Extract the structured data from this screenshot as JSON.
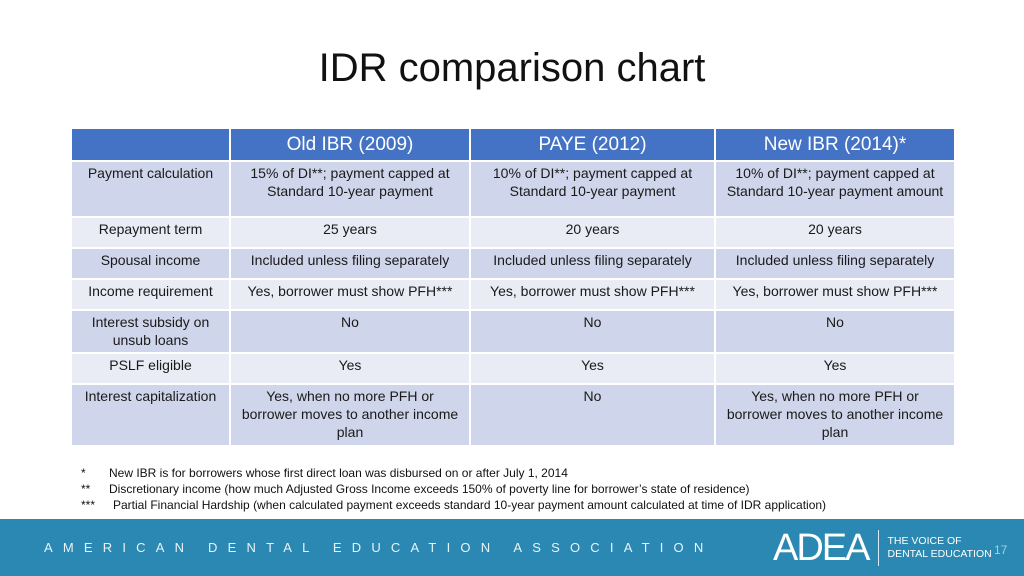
{
  "title": "IDR comparison chart",
  "table": {
    "columns": [
      "",
      "Old IBR (2009)",
      "PAYE (2012)",
      "New IBR (2014)*"
    ],
    "rows": [
      {
        "label": "Payment calculation",
        "cells": [
          "15% of DI**; payment capped at Standard 10-year payment",
          "10% of DI**; payment capped at Standard 10-year payment",
          "10% of DI**; payment capped at Standard 10-year payment amount"
        ]
      },
      {
        "label": "Repayment term",
        "cells": [
          "25 years",
          "20 years",
          "20 years"
        ]
      },
      {
        "label": "Spousal income",
        "cells": [
          "Included unless filing separately",
          "Included unless filing separately",
          "Included unless filing separately"
        ]
      },
      {
        "label": "Income requirement",
        "cells": [
          "Yes, borrower must show PFH***",
          "Yes, borrower must show PFH***",
          "Yes, borrower must show PFH***"
        ]
      },
      {
        "label": "Interest subsidy on unsub loans",
        "cells": [
          "No",
          "No",
          "No"
        ]
      },
      {
        "label": "PSLF eligible",
        "cells": [
          "Yes",
          "Yes",
          "Yes"
        ]
      },
      {
        "label": "Interest capitalization",
        "cells": [
          "Yes, when no more PFH or borrower moves to another income plan",
          "No",
          "Yes, when no more PFH or borrower moves to another income plan"
        ]
      }
    ]
  },
  "footnotes": [
    {
      "mark": "*",
      "text": "New IBR is for borrowers whose first direct loan was disbursed on or after July 1, 2014"
    },
    {
      "mark": "**",
      "text": "Discretionary income (how much Adjusted Gross Income exceeds 150% of poverty line for borrower’s state of residence)"
    },
    {
      "mark": "***",
      "text": "Partial Financial Hardship (when calculated payment exceeds standard 10-year payment amount calculated at time of IDR application)"
    }
  ],
  "footer": {
    "association": "AMERICAN DENTAL EDUCATION ASSOCIATION",
    "logo_text": "ADEA",
    "tagline_line1": "THE VOICE OF",
    "tagline_line2": "DENTAL EDUCATION",
    "page_number": "17",
    "bar_color": "#2a88b2"
  },
  "colors": {
    "header": "#4472c4",
    "row_dark": "#cfd5ea",
    "row_light": "#e9ebf5"
  }
}
